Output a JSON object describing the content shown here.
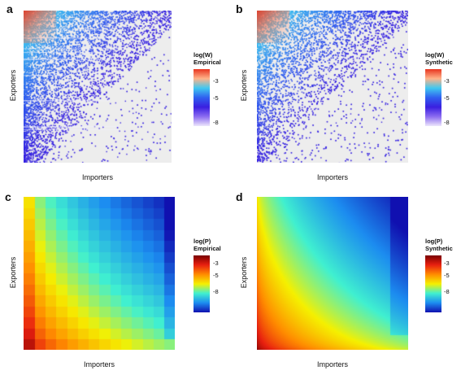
{
  "chart_data": [
    {
      "type": "heatmap",
      "panel": "a",
      "xlabel": "Importers",
      "ylabel": "Exporters",
      "legend": {
        "title_line1": "log(W)",
        "title_line2": "Empirical",
        "ticks": [
          "-3",
          "-5",
          "-8"
        ],
        "colors": [
          "#e8351f",
          "#ffb38a",
          "#40c8f0",
          "#3060f0",
          "#3a1fe0",
          "#8c6cf0",
          "#ece6fb"
        ]
      },
      "style": "sparse-scatter-empirical"
    },
    {
      "type": "heatmap",
      "panel": "b",
      "xlabel": "Importers",
      "ylabel": "Exporters",
      "legend": {
        "title_line1": "log(W)",
        "title_line2": "Synthetic",
        "ticks": [
          "-3",
          "-5",
          "-8"
        ],
        "colors": [
          "#e8351f",
          "#ffb38a",
          "#40c8f0",
          "#3060f0",
          "#3a1fe0",
          "#8c6cf0",
          "#ece6fb"
        ]
      },
      "style": "sparse-scatter-synthetic"
    },
    {
      "type": "heatmap",
      "panel": "c",
      "xlabel": "Importers",
      "ylabel": "Exporters",
      "legend": {
        "title_line1": "log(P)",
        "title_line2": "Empirical",
        "ticks": [
          "-3",
          "-5",
          "-8"
        ],
        "colors": [
          "#7a0000",
          "#e82010",
          "#ff8c00",
          "#f5f000",
          "#40f0d0",
          "#1c8cf0",
          "#1010b0"
        ]
      },
      "style": "dense-empirical"
    },
    {
      "type": "heatmap",
      "panel": "d",
      "xlabel": "Importers",
      "ylabel": "Exporters",
      "legend": {
        "title_line1": "log(P)",
        "title_line2": "Synthetic",
        "ticks": [
          "-3",
          "-5",
          "-8"
        ],
        "colors": [
          "#7a0000",
          "#e82010",
          "#ff8c00",
          "#f5f000",
          "#40f0d0",
          "#1c8cf0",
          "#1010b0"
        ]
      },
      "style": "dense-synthetic"
    }
  ]
}
